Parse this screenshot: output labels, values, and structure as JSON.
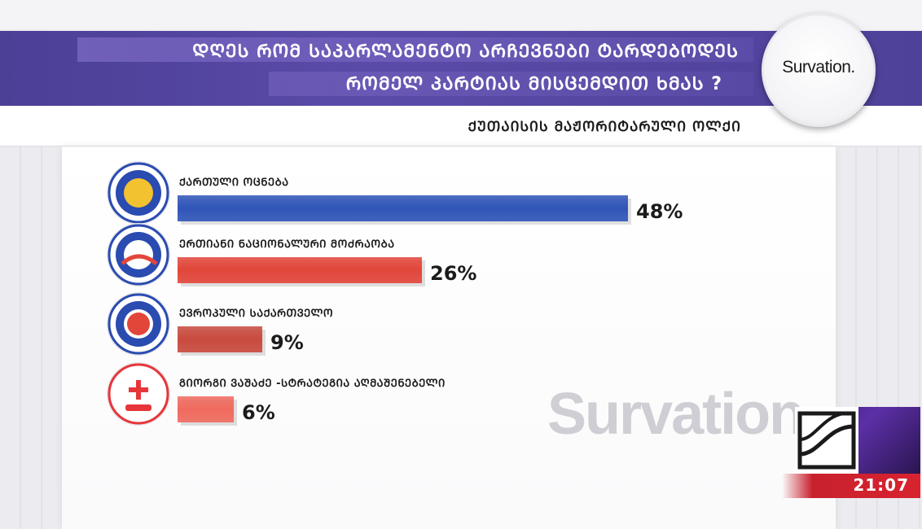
{
  "header": {
    "title_line_1": "ᲓᲦᲔᲡ ᲠᲝᲛ ᲡᲐᲞᲐᲠᲚᲐᲛᲔᲜᲢᲝ ᲐᲠᲩᲔᲕᲜᲔᲑᲘ ᲢᲐᲠᲓᲔᲑᲝᲓᲔᲡ",
    "title_line_2": "ᲠᲝᲛᲔᲚ ᲞᲐᲠᲢᲘᲐᲡ ᲛᲘᲡᲪᲔᲛᲓᲘᲗ ᲮᲛᲐᲡ ?",
    "subtitle": "ᲥᲣᲗᲐᲘᲡᲘᲡ ᲛᲐᲟᲝᲠᲘᲢᲐᲠᲣᲚᲘ ᲝᲚᲥᲘ",
    "logo_text": "Survation."
  },
  "watermark": "Survation",
  "overlay": {
    "clock": "21:07"
  },
  "chart_data": {
    "type": "bar",
    "orientation": "horizontal",
    "categories": [
      "ᲥᲐᲠᲗᲣᲚᲘ ᲝᲪᲜᲔᲑᲐ",
      "ᲔᲠᲗᲘᲐᲜᲘ ᲜᲐᲪᲘᲝᲜᲐᲚᲣᲠᲘ ᲛᲝᲫᲠᲐᲝᲑᲐ",
      "ᲔᲕᲠᲝᲞᲣᲚᲘ ᲡᲐᲥᲐᲠᲗᲕᲔᲚᲝ",
      "ᲒᲘᲝᲠᲒᲘ ᲕᲐᲨᲐᲫᲔ -ᲡᲢᲠᲐᲢᲔᲒᲘᲐ ᲐᲦᲛᲐᲨᲔᲜᲔᲑᲔᲚᲘ"
    ],
    "values": [
      48,
      26,
      9,
      6
    ],
    "value_labels": [
      "48%",
      "26%",
      "9%",
      "6%"
    ],
    "unit": "%",
    "colors": [
      "#2f55b8",
      "#e2463a",
      "#c94a3e",
      "#f06a5e"
    ],
    "logo_icons": [
      "georgian-dream-logo-icon",
      "united-national-movement-logo-icon",
      "european-georgia-logo-icon",
      "strategy-aghmashenebeli-logo-icon"
    ],
    "logo_colors": [
      "#2a4bb0",
      "#2a4bb0",
      "#2a4bb0",
      "#e6363a"
    ],
    "xlim": [
      0,
      48
    ],
    "grid": false,
    "legend": "none"
  }
}
